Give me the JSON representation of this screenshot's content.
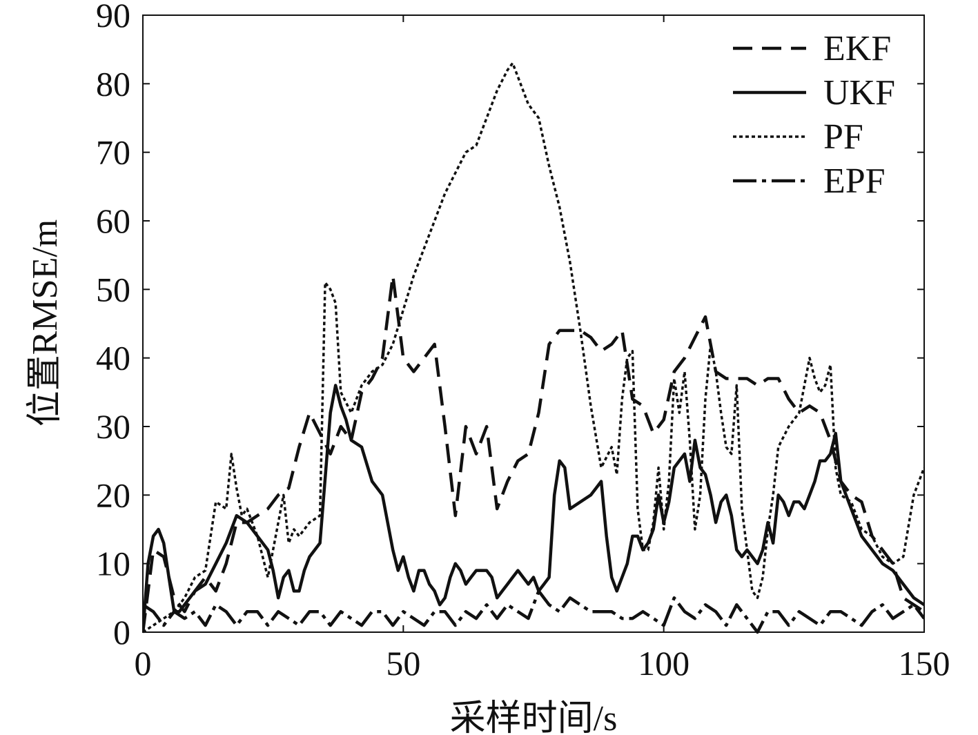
{
  "chart_data": {
    "type": "line",
    "title": "",
    "xlabel": "采样时间/s",
    "ylabel": "位置RMSE/m",
    "xlim": [
      0,
      150
    ],
    "ylim": [
      0,
      90
    ],
    "xticks": [
      0,
      50,
      100,
      150
    ],
    "yticks": [
      0,
      10,
      20,
      30,
      40,
      50,
      60,
      70,
      80,
      90
    ],
    "grid": false,
    "legend_position": "top-right",
    "series": [
      {
        "name": "EKF",
        "dash": "28 14",
        "x": [
          0,
          2,
          4,
          6,
          8,
          10,
          12,
          14,
          16,
          18,
          20,
          22,
          24,
          26,
          28,
          30,
          32,
          34,
          36,
          38,
          40,
          42,
          44,
          46,
          48,
          50,
          52,
          54,
          56,
          58,
          60,
          62,
          64,
          66,
          68,
          70,
          72,
          74,
          76,
          78,
          80,
          82,
          84,
          86,
          88,
          90,
          92,
          94,
          96,
          98,
          100,
          102,
          104,
          106,
          108,
          110,
          112,
          114,
          116,
          118,
          120,
          122,
          124,
          126,
          128,
          130,
          132,
          134,
          136,
          138,
          140,
          142,
          144,
          146,
          148,
          150
        ],
        "y": [
          0,
          12,
          11,
          5,
          3,
          6,
          8,
          6,
          10,
          16,
          16,
          17,
          18,
          20,
          21,
          27,
          32,
          29,
          26,
          30,
          28,
          35,
          37,
          40,
          52,
          40,
          38,
          40,
          42,
          30,
          17,
          30,
          26,
          30,
          18,
          22,
          25,
          26,
          32,
          42,
          44,
          44,
          44,
          43,
          41,
          42,
          44,
          34,
          33,
          29,
          31,
          38,
          40,
          43,
          46,
          38,
          37,
          37,
          37,
          36,
          37,
          37,
          34,
          32,
          33,
          32,
          28,
          22,
          20,
          19,
          14,
          12,
          10,
          5,
          4,
          3
        ]
      },
      {
        "name": "UKF",
        "dash": "",
        "x": [
          0,
          1,
          2,
          3,
          4,
          5,
          6,
          7,
          8,
          10,
          12,
          14,
          16,
          18,
          20,
          22,
          24,
          25,
          26,
          27,
          28,
          29,
          30,
          31,
          32,
          34,
          36,
          37,
          38,
          39,
          40,
          42,
          44,
          46,
          48,
          49,
          50,
          51,
          52,
          53,
          54,
          55,
          56,
          57,
          58,
          59,
          60,
          61,
          62,
          63,
          64,
          65,
          66,
          67,
          68,
          69,
          70,
          71,
          72,
          73,
          74,
          75,
          76,
          77,
          78,
          79,
          80,
          81,
          82,
          84,
          86,
          87,
          88,
          89,
          90,
          91,
          92,
          93,
          94,
          95,
          96,
          97,
          98,
          99,
          100,
          101,
          102,
          103,
          104,
          105,
          106,
          107,
          108,
          109,
          110,
          111,
          112,
          113,
          114,
          115,
          116,
          117,
          118,
          119,
          120,
          121,
          122,
          123,
          124,
          125,
          126,
          127,
          128,
          129,
          130,
          131,
          132,
          133,
          134,
          136,
          138,
          140,
          142,
          144,
          146,
          148,
          150
        ],
        "y": [
          0,
          10,
          14,
          15,
          13,
          8,
          3,
          3,
          4,
          6,
          7,
          10,
          13,
          17,
          16,
          14,
          12,
          9,
          5,
          8,
          9,
          6,
          6,
          9,
          11,
          13,
          32,
          36,
          33,
          31,
          28,
          27,
          22,
          20,
          12,
          9,
          11,
          8,
          6,
          9,
          9,
          7,
          6,
          4,
          5,
          8,
          10,
          9,
          7,
          8,
          9,
          9,
          9,
          8,
          5,
          6,
          7,
          8,
          9,
          8,
          7,
          8,
          6,
          7,
          8,
          20,
          25,
          24,
          18,
          19,
          20,
          21,
          22,
          14,
          8,
          6,
          8,
          10,
          14,
          14,
          12,
          13,
          15,
          20,
          16,
          19,
          24,
          25,
          26,
          22,
          28,
          24,
          23,
          20,
          16,
          19,
          20,
          17,
          12,
          11,
          12,
          11,
          10,
          12,
          16,
          13,
          20,
          19,
          17,
          19,
          19,
          18,
          20,
          22,
          25,
          25,
          26,
          29,
          22,
          18,
          14,
          12,
          10,
          9,
          7,
          5,
          4
        ]
      },
      {
        "name": "PF",
        "dash": "5 4",
        "x": [
          0,
          2,
          4,
          6,
          8,
          10,
          12,
          14,
          16,
          17,
          18,
          19,
          20,
          22,
          24,
          26,
          27,
          28,
          29,
          30,
          32,
          34,
          35,
          36,
          37,
          38,
          40,
          42,
          44,
          46,
          48,
          50,
          52,
          54,
          56,
          58,
          60,
          62,
          64,
          66,
          68,
          70,
          71,
          72,
          74,
          76,
          78,
          80,
          82,
          84,
          86,
          88,
          90,
          91,
          92,
          93,
          94,
          95,
          96,
          97,
          98,
          99,
          100,
          101,
          102,
          103,
          104,
          105,
          106,
          107,
          108,
          109,
          110,
          111,
          112,
          113,
          114,
          115,
          116,
          117,
          118,
          119,
          120,
          121,
          122,
          124,
          126,
          128,
          129,
          130,
          131,
          132,
          133,
          134,
          136,
          138,
          140,
          142,
          144,
          146,
          148,
          150
        ],
        "y": [
          0,
          1,
          2,
          3,
          5,
          8,
          9,
          19,
          18,
          26,
          21,
          17,
          18,
          14,
          8,
          16,
          20,
          13,
          15,
          14,
          16,
          17,
          51,
          50,
          48,
          35,
          32,
          36,
          38,
          39,
          42,
          47,
          52,
          56,
          60,
          64,
          67,
          70,
          71,
          75,
          79,
          82,
          83,
          81,
          77,
          75,
          68,
          62,
          54,
          44,
          33,
          24,
          27,
          23,
          34,
          40,
          41,
          18,
          12,
          12,
          16,
          24,
          15,
          22,
          37,
          32,
          38,
          28,
          15,
          20,
          34,
          42,
          38,
          32,
          27,
          26,
          36,
          18,
          12,
          6,
          5,
          8,
          15,
          20,
          27,
          30,
          32,
          40,
          37,
          35,
          36,
          39,
          24,
          20,
          19,
          15,
          14,
          11,
          10,
          11,
          20,
          24
        ]
      },
      {
        "name": "EPF",
        "dash": "34 8 6 8",
        "x": [
          0,
          2,
          4,
          6,
          8,
          10,
          12,
          14,
          16,
          18,
          20,
          22,
          24,
          26,
          28,
          30,
          32,
          34,
          36,
          38,
          40,
          42,
          44,
          46,
          48,
          50,
          52,
          54,
          56,
          58,
          60,
          62,
          64,
          66,
          68,
          70,
          72,
          74,
          76,
          78,
          80,
          82,
          84,
          86,
          88,
          90,
          92,
          94,
          96,
          98,
          100,
          102,
          104,
          106,
          108,
          110,
          112,
          114,
          116,
          118,
          120,
          122,
          124,
          126,
          128,
          130,
          132,
          134,
          136,
          138,
          140,
          142,
          144,
          146,
          148,
          150
        ],
        "y": [
          4,
          3,
          1,
          3,
          2,
          3,
          1,
          4,
          3,
          1,
          3,
          3,
          1,
          3,
          2,
          1,
          3,
          3,
          1,
          3,
          2,
          1,
          3,
          3,
          1,
          3,
          2,
          1,
          3,
          3,
          1,
          3,
          2,
          4,
          2,
          4,
          3,
          2,
          6,
          4,
          3,
          5,
          4,
          3,
          3,
          3,
          2,
          2,
          3,
          2,
          1,
          5,
          3,
          2,
          4,
          3,
          1,
          4,
          2,
          0,
          3,
          3,
          1,
          3,
          2,
          1,
          3,
          3,
          2,
          1,
          3,
          4,
          2,
          3,
          4,
          2
        ]
      }
    ]
  }
}
